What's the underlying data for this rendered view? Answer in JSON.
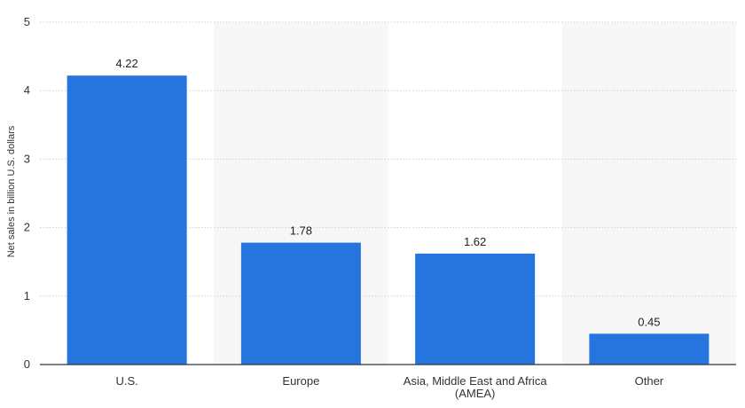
{
  "chart_data": {
    "type": "bar",
    "categories": [
      "U.S.",
      "Europe",
      "Asia, Middle East and Africa (AMEA)",
      "Other"
    ],
    "category_lines": [
      [
        "U.S."
      ],
      [
        "Europe"
      ],
      [
        "Asia, Middle East and Africa",
        "(AMEA)"
      ],
      [
        "Other"
      ]
    ],
    "values": [
      4.22,
      1.78,
      1.62,
      0.45
    ],
    "value_labels": [
      "4.22",
      "1.78",
      "1.62",
      "0.45"
    ],
    "title": "",
    "xlabel": "",
    "ylabel": "Net sales in billion U.S. dollars",
    "ylim": [
      0,
      5
    ],
    "yticks": [
      0,
      1,
      2,
      3,
      4,
      5
    ],
    "grid": true,
    "legend": "none"
  },
  "colors": {
    "bar": "#2675de",
    "alt_band": "#f7f7f7",
    "grid": "#cfcfcf",
    "axis": "#333333"
  }
}
